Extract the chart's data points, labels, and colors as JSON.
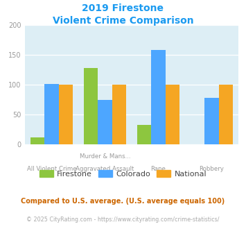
{
  "title_line1": "2019 Firestone",
  "title_line2": "Violent Crime Comparison",
  "title_color": "#1a9af0",
  "firestone": [
    12,
    128,
    32,
    0
  ],
  "colorado": [
    101,
    75,
    158,
    78
  ],
  "national": [
    100,
    100,
    100,
    100
  ],
  "firestone_color": "#8dc63f",
  "colorado_color": "#4da6ff",
  "national_color": "#f5a623",
  "ylim": [
    0,
    200
  ],
  "yticks": [
    0,
    50,
    100,
    150,
    200
  ],
  "bg_color": "#ddeef5",
  "label_top": [
    "",
    "Murder & Mans...",
    "",
    ""
  ],
  "label_bot": [
    "All Violent Crime",
    "Aggravated Assault",
    "Rape",
    "Robbery"
  ],
  "footnote1": "Compared to U.S. average. (U.S. average equals 100)",
  "footnote1_color": "#cc6600",
  "footnote2": "© 2025 CityRating.com - https://www.cityrating.com/crime-statistics/",
  "footnote2_color": "#aaaaaa",
  "legend_text_color": "#444444",
  "tick_color": "#999999"
}
